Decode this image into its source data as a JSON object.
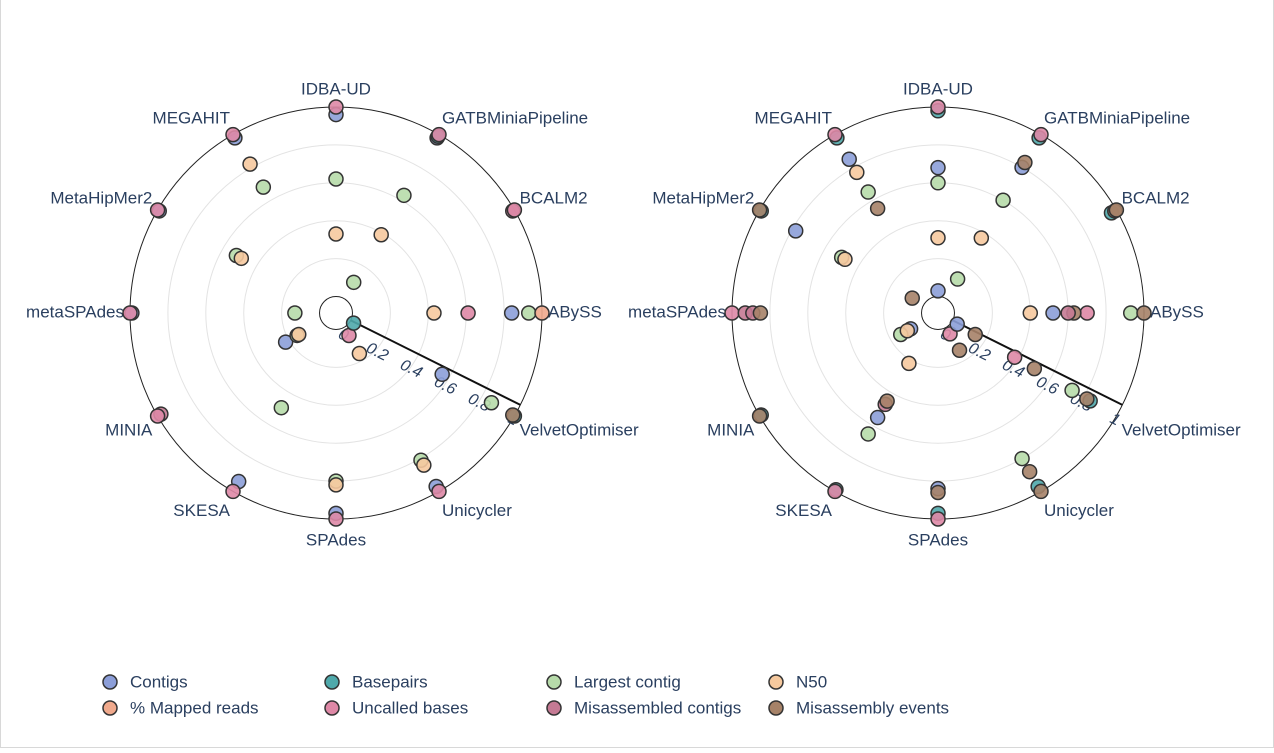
{
  "chart_data": {
    "type": "polar-scatter",
    "radial_range": [
      0,
      1
    ],
    "radial_ticks": [
      "0",
      "0.2",
      "0.4",
      "0.6",
      "0.8",
      "1"
    ],
    "angular_categories": [
      "ABySS",
      "BCALM2",
      "GATBMiniaPipeline",
      "IDBA-UD",
      "MEGAHIT",
      "MetaHipMer2",
      "metaSPAdes",
      "MINIA",
      "SKESA",
      "SPAdes",
      "Unicycler",
      "VelvetOptimiser"
    ],
    "legend": [
      {
        "name": "Contigs",
        "color": "#8c9ed8"
      },
      {
        "name": "Basepairs",
        "color": "#4fa9ab"
      },
      {
        "name": "Largest contig",
        "color": "#b7dbaa"
      },
      {
        "name": "N50",
        "color": "#f6c99e"
      },
      {
        "name": "% Mapped reads",
        "color": "#f0a98c"
      },
      {
        "name": "Uncalled bases",
        "color": "#de88a6"
      },
      {
        "name": "Misassembled contigs",
        "color": "#c57a94"
      },
      {
        "name": "Misassembly events",
        "color": "#a68268"
      }
    ],
    "charts": [
      {
        "points": [
          {
            "s": "Contigs",
            "c": "ABySS",
            "r": 0.84
          },
          {
            "s": "Largest contig",
            "c": "ABySS",
            "r": 0.93
          },
          {
            "s": "% Mapped reads",
            "c": "ABySS",
            "r": 1.0
          },
          {
            "s": "Uncalled bases",
            "c": "ABySS",
            "r": 0.61
          },
          {
            "s": "N50",
            "c": "ABySS",
            "r": 0.43
          },
          {
            "s": "Misassembled contigs",
            "c": "BCALM2",
            "r": 0.99
          },
          {
            "s": "Uncalled bases",
            "c": "BCALM2",
            "r": 1.0
          },
          {
            "s": "Contigs",
            "c": "GATBMiniaPipeline",
            "r": 0.98
          },
          {
            "s": "Basepairs",
            "c": "GATBMiniaPipeline",
            "r": 0.99
          },
          {
            "s": "Uncalled bases",
            "c": "GATBMiniaPipeline",
            "r": 1.0
          },
          {
            "s": "Largest contig",
            "c": "GATBMiniaPipeline",
            "r": 0.63
          },
          {
            "s": "N50",
            "c": "GATBMiniaPipeline",
            "r": 0.39
          },
          {
            "s": "Largest contig",
            "c": "GATBMiniaPipeline",
            "r": 0.1
          },
          {
            "s": "Contigs",
            "c": "IDBA-UD",
            "r": 0.96
          },
          {
            "s": "Uncalled bases",
            "c": "IDBA-UD",
            "r": 1.0
          },
          {
            "s": "Largest contig",
            "c": "IDBA-UD",
            "r": 0.62
          },
          {
            "s": "N50",
            "c": "IDBA-UD",
            "r": 0.33
          },
          {
            "s": "Contigs",
            "c": "MEGAHIT",
            "r": 0.98
          },
          {
            "s": "Uncalled bases",
            "c": "MEGAHIT",
            "r": 1.0
          },
          {
            "s": "N50",
            "c": "MEGAHIT",
            "r": 0.82
          },
          {
            "s": "Largest contig",
            "c": "MEGAHIT",
            "r": 0.68
          },
          {
            "s": "Contigs",
            "c": "MetaHipMer2",
            "r": 0.99
          },
          {
            "s": "Uncalled bases",
            "c": "MetaHipMer2",
            "r": 1.0
          },
          {
            "s": "Largest contig",
            "c": "MetaHipMer2",
            "r": 0.52
          },
          {
            "s": "N50",
            "c": "MetaHipMer2",
            "r": 0.49
          },
          {
            "s": "Contigs",
            "c": "metaSPAdes",
            "r": 0.99
          },
          {
            "s": "Uncalled bases",
            "c": "metaSPAdes",
            "r": 1.0
          },
          {
            "s": "Largest contig",
            "c": "metaSPAdes",
            "r": 0.13
          },
          {
            "s": "Contigs",
            "c": "MINIA",
            "r": 0.22
          },
          {
            "s": "Misassembled contigs",
            "c": "MINIA",
            "r": 0.98
          },
          {
            "s": "Uncalled bases",
            "c": "MINIA",
            "r": 1.0
          },
          {
            "s": "Largest contig",
            "c": "MINIA",
            "r": 0.15
          },
          {
            "s": "N50",
            "c": "MINIA",
            "r": 0.14
          },
          {
            "s": "Contigs",
            "c": "SKESA",
            "r": 0.94
          },
          {
            "s": "Uncalled bases",
            "c": "SKESA",
            "r": 1.0
          },
          {
            "s": "Largest contig",
            "c": "SKESA",
            "r": 0.49
          },
          {
            "s": "Contigs",
            "c": "SPAdes",
            "r": 0.97
          },
          {
            "s": "Uncalled bases",
            "c": "SPAdes",
            "r": 1.0
          },
          {
            "s": "Largest contig",
            "c": "SPAdes",
            "r": 0.8
          },
          {
            "s": "N50",
            "c": "SPAdes",
            "r": 0.82
          },
          {
            "s": "Contigs",
            "c": "Unicycler",
            "r": 0.97
          },
          {
            "s": "Uncalled bases",
            "c": "Unicycler",
            "r": 1.0
          },
          {
            "s": "Largest contig",
            "c": "Unicycler",
            "r": 0.81
          },
          {
            "s": "N50",
            "c": "Unicycler",
            "r": 0.84
          },
          {
            "s": "N50",
            "c": "Unicycler",
            "r": 0.16
          },
          {
            "s": "Uncalled bases",
            "c": "Unicycler",
            "r": 0.05
          },
          {
            "s": "Basepairs",
            "c": "VelvetOptimiser",
            "r": 1.0
          },
          {
            "s": "Misassembly events",
            "c": "VelvetOptimiser",
            "r": 0.99
          },
          {
            "s": "Largest contig",
            "c": "VelvetOptimiser",
            "r": 0.86
          },
          {
            "s": "Contigs",
            "c": "VelvetOptimiser",
            "r": 0.56
          },
          {
            "s": "Basepairs",
            "c": "VelvetOptimiser",
            "r": 0.02
          }
        ]
      },
      {
        "points": [
          {
            "s": "Largest contig",
            "c": "ABySS",
            "r": 0.93
          },
          {
            "s": "Misassembly events",
            "c": "ABySS",
            "r": 1.0
          },
          {
            "s": "Uncalled bases",
            "c": "ABySS",
            "r": 0.7
          },
          {
            "s": "Misassembly events",
            "c": "ABySS",
            "r": 0.63
          },
          {
            "s": "Misassembled contigs",
            "c": "ABySS",
            "r": 0.6
          },
          {
            "s": "Contigs",
            "c": "ABySS",
            "r": 0.52
          },
          {
            "s": "N50",
            "c": "ABySS",
            "r": 0.4
          },
          {
            "s": "Basepairs",
            "c": "BCALM2",
            "r": 0.97
          },
          {
            "s": "Misassembly events",
            "c": "BCALM2",
            "r": 0.99
          },
          {
            "s": "Misassembly events",
            "c": "BCALM2",
            "r": 1.0
          },
          {
            "s": "Basepairs",
            "c": "GATBMiniaPipeline",
            "r": 0.98
          },
          {
            "s": "Uncalled bases",
            "c": "GATBMiniaPipeline",
            "r": 1.0
          },
          {
            "s": "Contigs",
            "c": "GATBMiniaPipeline",
            "r": 0.8
          },
          {
            "s": "Misassembly events",
            "c": "GATBMiniaPipeline",
            "r": 0.83
          },
          {
            "s": "Largest contig",
            "c": "GATBMiniaPipeline",
            "r": 0.6
          },
          {
            "s": "N50",
            "c": "GATBMiniaPipeline",
            "r": 0.37
          },
          {
            "s": "Largest contig",
            "c": "GATBMiniaPipeline",
            "r": 0.12
          },
          {
            "s": "Basepairs",
            "c": "IDBA-UD",
            "r": 0.98
          },
          {
            "s": "Uncalled bases",
            "c": "IDBA-UD",
            "r": 1.0
          },
          {
            "s": "Contigs",
            "c": "IDBA-UD",
            "r": 0.68
          },
          {
            "s": "Largest contig",
            "c": "IDBA-UD",
            "r": 0.6
          },
          {
            "s": "N50",
            "c": "IDBA-UD",
            "r": 0.31
          },
          {
            "s": "Contigs",
            "c": "IDBA-UD",
            "r": 0.03
          },
          {
            "s": "Basepairs",
            "c": "MEGAHIT",
            "r": 0.98
          },
          {
            "s": "Uncalled bases",
            "c": "MEGAHIT",
            "r": 1.0
          },
          {
            "s": "Contigs",
            "c": "MEGAHIT",
            "r": 0.85
          },
          {
            "s": "N50",
            "c": "MEGAHIT",
            "r": 0.77
          },
          {
            "s": "Largest contig",
            "c": "MEGAHIT",
            "r": 0.65
          },
          {
            "s": "Misassembly events",
            "c": "MEGAHIT",
            "r": 0.55
          },
          {
            "s": "Basepairs",
            "c": "MetaHipMer2",
            "r": 0.99
          },
          {
            "s": "Misassembly events",
            "c": "MetaHipMer2",
            "r": 1.0
          },
          {
            "s": "Contigs",
            "c": "MetaHipMer2",
            "r": 0.78
          },
          {
            "s": "Largest contig",
            "c": "MetaHipMer2",
            "r": 0.5
          },
          {
            "s": "N50",
            "c": "MetaHipMer2",
            "r": 0.48
          },
          {
            "s": "Misassembly events",
            "c": "MetaHipMer2",
            "r": 0.07
          },
          {
            "s": "Uncalled bases",
            "c": "metaSPAdes",
            "r": 1.0
          },
          {
            "s": "Misassembled contigs",
            "c": "metaSPAdes",
            "r": 0.93
          },
          {
            "s": "Misassembled contigs",
            "c": "metaSPAdes",
            "r": 0.89
          },
          {
            "s": "Misassembly events",
            "c": "metaSPAdes",
            "r": 0.85
          },
          {
            "s": "Basepairs",
            "c": "MINIA",
            "r": 0.99
          },
          {
            "s": "Misassembly events",
            "c": "MINIA",
            "r": 1.0
          },
          {
            "s": "Contigs",
            "c": "MINIA",
            "r": 0.08
          },
          {
            "s": "Largest contig",
            "c": "MINIA",
            "r": 0.14
          },
          {
            "s": "N50",
            "c": "MINIA",
            "r": 0.1
          },
          {
            "s": "Basepairs",
            "c": "SKESA",
            "r": 0.99
          },
          {
            "s": "Uncalled bases",
            "c": "SKESA",
            "r": 1.0
          },
          {
            "s": "Contigs",
            "c": "SKESA",
            "r": 0.55
          },
          {
            "s": "Largest contig",
            "c": "SKESA",
            "r": 0.65
          },
          {
            "s": "Misassembled contigs",
            "c": "SKESA",
            "r": 0.47
          },
          {
            "s": "Misassembly events",
            "c": "SKESA",
            "r": 0.45
          },
          {
            "s": "N50",
            "c": "SKESA",
            "r": 0.22
          },
          {
            "s": "Basepairs",
            "c": "SPAdes",
            "r": 0.97
          },
          {
            "s": "Uncalled bases",
            "c": "SPAdes",
            "r": 1.0
          },
          {
            "s": "Contigs",
            "c": "SPAdes",
            "r": 0.84
          },
          {
            "s": "Misassembly events",
            "c": "SPAdes",
            "r": 0.86
          },
          {
            "s": "Basepairs",
            "c": "Unicycler",
            "r": 0.97
          },
          {
            "s": "Misassembly events",
            "c": "Unicycler",
            "r": 1.0
          },
          {
            "s": "Largest contig",
            "c": "Unicycler",
            "r": 0.8
          },
          {
            "s": "Misassembly events",
            "c": "Unicycler",
            "r": 0.88
          },
          {
            "s": "Misassembly events",
            "c": "Unicycler",
            "r": 0.14
          },
          {
            "s": "Uncalled bases",
            "c": "Unicycler",
            "r": 0.04
          },
          {
            "s": "Basepairs",
            "c": "VelvetOptimiser",
            "r": 0.84
          },
          {
            "s": "Misassembly events",
            "c": "VelvetOptimiser",
            "r": 0.82
          },
          {
            "s": "Largest contig",
            "c": "VelvetOptimiser",
            "r": 0.73
          },
          {
            "s": "Misassembly events",
            "c": "VelvetOptimiser",
            "r": 0.5
          },
          {
            "s": "Uncalled bases",
            "c": "VelvetOptimiser",
            "r": 0.38
          },
          {
            "s": "Misassembly events",
            "c": "VelvetOptimiser",
            "r": 0.14
          },
          {
            "s": "Contigs",
            "c": "VelvetOptimiser",
            "r": 0.03
          }
        ]
      }
    ]
  }
}
